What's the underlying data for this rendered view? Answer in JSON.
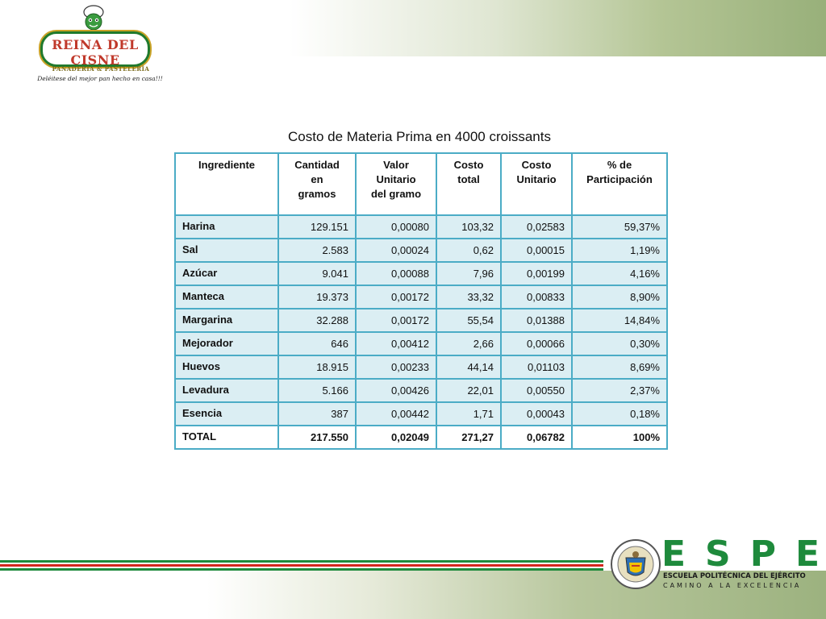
{
  "logo": {
    "name": "REINA DEL CISNE",
    "subtitle": "PANADERÍA & PASTELERÍA",
    "slogan": "Deléitese del mejor pan hecho en casa!!!"
  },
  "title": "Costo de Materia Prima en 4000 croissants",
  "table": {
    "headers": [
      [
        "Ingrediente"
      ],
      [
        "Cantidad",
        "en",
        "gramos"
      ],
      [
        "Valor",
        "Unitario",
        "del gramo"
      ],
      [
        "Costo",
        "total"
      ],
      [
        "Costo",
        "Unitario"
      ],
      [
        "% de",
        "Participación"
      ]
    ],
    "rows": [
      [
        "Harina",
        "129.151",
        "0,00080",
        "103,32",
        "0,02583",
        "59,37%"
      ],
      [
        "Sal",
        "2.583",
        "0,00024",
        "0,62",
        "0,00015",
        "1,19%"
      ],
      [
        "Azúcar",
        "9.041",
        "0,00088",
        "7,96",
        "0,00199",
        "4,16%"
      ],
      [
        "Manteca",
        "19.373",
        "0,00172",
        "33,32",
        "0,00833",
        "8,90%"
      ],
      [
        "Margarina",
        "32.288",
        "0,00172",
        "55,54",
        "0,01388",
        "14,84%"
      ],
      [
        "Mejorador",
        "646",
        "0,00412",
        "2,66",
        "0,00066",
        "0,30%"
      ],
      [
        "Huevos",
        "18.915",
        "0,00233",
        "44,14",
        "0,01103",
        "8,69%"
      ],
      [
        "Levadura",
        "5.166",
        "0,00426",
        "22,01",
        "0,00550",
        "2,37%"
      ],
      [
        "Esencia",
        "387",
        "0,00442",
        "1,71",
        "0,00043",
        "0,18%"
      ]
    ],
    "total": [
      "TOTAL",
      "217.550",
      "0,02049",
      "271,27",
      "0,06782",
      "100%"
    ]
  },
  "espe": {
    "letters": "ESPE",
    "name": "ESCUELA POLITÉCNICA DEL EJÉRCITO",
    "motto": "CAMINO A LA EXCELENCIA"
  },
  "colors": {
    "table_border": "#4bacc6",
    "row_fill": "#dbeef3",
    "espe_green": "#1e8a3c",
    "stripe_red": "#d4261f"
  }
}
